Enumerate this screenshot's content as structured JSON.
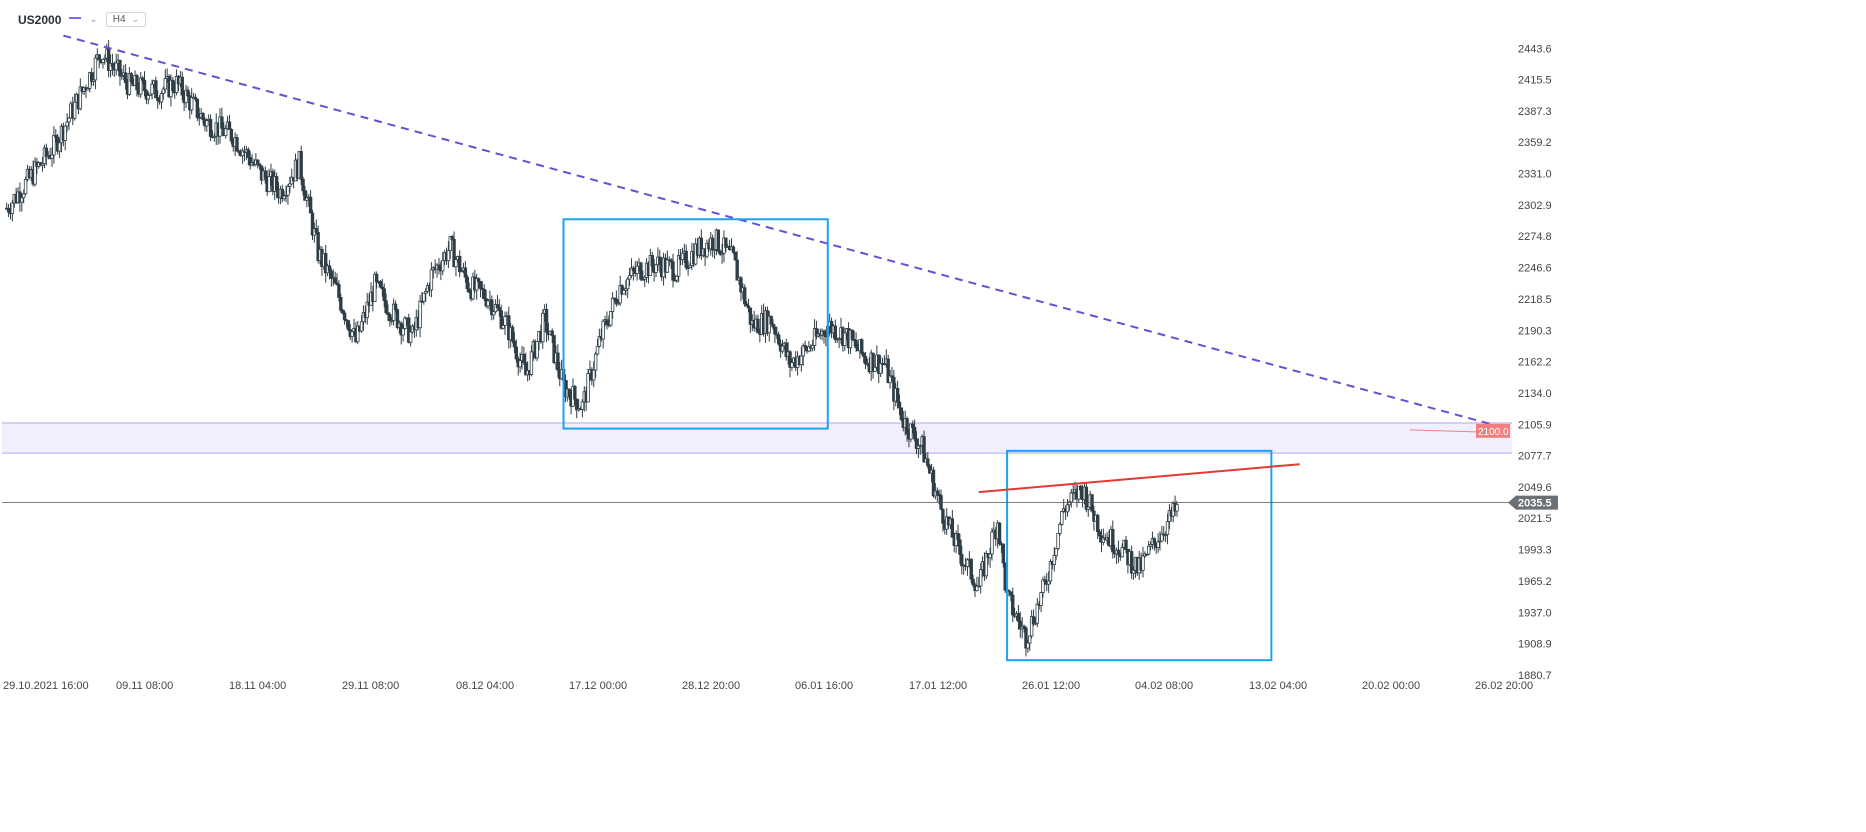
{
  "header": {
    "symbol": "US2000",
    "timeframe": "H4"
  },
  "colors": {
    "candle": "#2f3e46",
    "trendline": "#6a4fd0",
    "box": "#1da1f2",
    "resistance_line": "#e53935",
    "zone_fill": "#f1effd",
    "zone_border": "#c9c2f0",
    "current_price_badge": "#6b7075",
    "alert_badge": "#f08080",
    "axis_text": "#444444"
  },
  "chart_data": {
    "type": "candlestick",
    "symbol": "US2000",
    "timeframe": "H4",
    "ylim": [
      1880.7,
      2460
    ],
    "y_ticks": [
      2443.6,
      2415.5,
      2387.3,
      2359.2,
      2331.0,
      2302.9,
      2274.8,
      2246.6,
      2218.5,
      2190.3,
      2162.2,
      2134.0,
      2105.9,
      2077.7,
      2049.6,
      2021.5,
      1993.3,
      1965.2,
      1937.0,
      1908.9,
      1880.7
    ],
    "y_tick_labels": [
      "2443.6",
      "2415.5",
      "2387.3",
      "2359.2",
      "2331.0",
      "2302.9",
      "2274.8",
      "2246.6",
      "2218.5",
      "2190.3",
      "2162.2",
      "2134.0",
      "2105.9",
      "2077.7",
      "2049.6",
      "2021.5",
      "1993.3",
      "1965.2",
      "1937.0",
      "1908.9",
      "1880.7"
    ],
    "x_tick_labels": [
      "29.10.2021  16:00",
      "09.11  08:00",
      "18.11  04:00",
      "29.11  08:00",
      "08.12  04:00",
      "17.12  00:00",
      "28.12  20:00",
      "06.01  16:00",
      "17.01  12:00",
      "26.01  12:00",
      "04.02  08:00",
      "13.02  04:00",
      "20.02  00:00",
      "26.02  20:00"
    ],
    "current_price": "2035.5",
    "alert_price": "2100.0",
    "support_zone": [
      2080,
      2107
    ],
    "close_path": [
      [
        0,
        2300
      ],
      [
        5,
        2355
      ],
      [
        8,
        2405
      ],
      [
        10,
        2440
      ],
      [
        13,
        2410
      ],
      [
        16,
        2405
      ],
      [
        18,
        2412
      ],
      [
        21,
        2378
      ],
      [
        24,
        2365
      ],
      [
        27,
        2330
      ],
      [
        29,
        2315
      ],
      [
        31,
        2340
      ],
      [
        33,
        2260
      ],
      [
        35,
        2225
      ],
      [
        37,
        2180
      ],
      [
        39,
        2230
      ],
      [
        41,
        2205
      ],
      [
        43,
        2185
      ],
      [
        45,
        2240
      ],
      [
        47,
        2265
      ],
      [
        49,
        2230
      ],
      [
        51,
        2220
      ],
      [
        53,
        2195
      ],
      [
        55,
        2150
      ],
      [
        57,
        2200
      ],
      [
        59,
        2140
      ],
      [
        61,
        2122
      ],
      [
        63,
        2185
      ],
      [
        65,
        2230
      ],
      [
        67,
        2245
      ],
      [
        69,
        2250
      ],
      [
        71,
        2245
      ],
      [
        73,
        2262
      ],
      [
        75,
        2272
      ],
      [
        77,
        2253
      ],
      [
        79,
        2195
      ],
      [
        81,
        2200
      ],
      [
        83,
        2160
      ],
      [
        85,
        2175
      ],
      [
        87,
        2195
      ],
      [
        89,
        2185
      ],
      [
        91,
        2165
      ],
      [
        93,
        2160
      ],
      [
        95,
        2110
      ],
      [
        97,
        2085
      ],
      [
        99,
        2030
      ],
      [
        101,
        1990
      ],
      [
        103,
        1960
      ],
      [
        105,
        2020
      ],
      [
        106,
        1950
      ],
      [
        108,
        1915
      ],
      [
        110,
        1960
      ],
      [
        112,
        2030
      ],
      [
        114,
        2048
      ],
      [
        116,
        2010
      ],
      [
        118,
        1995
      ],
      [
        120,
        1975
      ],
      [
        122,
        2005
      ],
      [
        124,
        2030
      ]
    ],
    "annotations": {
      "descending_trendline": {
        "from": [
          6,
          2455
        ],
        "to": [
          159,
          2102
        ],
        "style": "dashed"
      },
      "rect_1": {
        "from": [
          59,
          2290
        ],
        "to": [
          87,
          2102
        ]
      },
      "rect_2": {
        "from": [
          106,
          2082
        ],
        "to": [
          134,
          1894
        ]
      },
      "rising_resistance": {
        "from": [
          103,
          2045
        ],
        "to": [
          137,
          2070
        ]
      }
    }
  }
}
